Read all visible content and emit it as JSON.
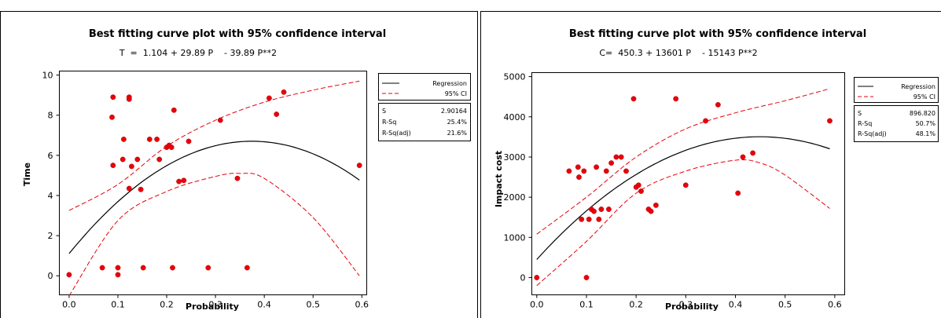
{
  "chart_data": [
    {
      "type": "scatter",
      "title": "Best fitting curve plot with 95% confidence interval",
      "subtitle": "T  =  1.104 + 29.89 P    - 39.89 P**2",
      "xlabel": "Probability",
      "ylabel": "Time",
      "xlim": [
        -0.02,
        0.61
      ],
      "ylim": [
        -0.95,
        10.2
      ],
      "xticks": [
        "0.0",
        "0.1",
        "0.2",
        "0.3",
        "0.4",
        "0.5",
        "0.6"
      ],
      "yticks": [
        "0",
        "2",
        "4",
        "6",
        "8",
        "10"
      ],
      "fit": {
        "intercept": 1.104,
        "linear": 29.89,
        "quadratic": -39.89
      },
      "ci_upper": [
        [
          0,
          3.25
        ],
        [
          0.1,
          4.55
        ],
        [
          0.2,
          6.45
        ],
        [
          0.3,
          7.75
        ],
        [
          0.4,
          8.65
        ],
        [
          0.5,
          9.25
        ],
        [
          0.595,
          9.7
        ]
      ],
      "ci_lower": [
        [
          0,
          -1.0
        ],
        [
          0.1,
          2.75
        ],
        [
          0.2,
          4.2
        ],
        [
          0.3,
          4.95
        ],
        [
          0.35,
          5.1
        ],
        [
          0.4,
          4.85
        ],
        [
          0.5,
          2.9
        ],
        [
          0.595,
          0.0
        ]
      ],
      "points": [
        [
          0.0,
          0.05
        ],
        [
          0.09,
          8.9
        ],
        [
          0.088,
          7.9
        ],
        [
          0.09,
          5.5
        ],
        [
          0.068,
          0.4
        ],
        [
          0.1,
          0.4
        ],
        [
          0.1,
          0.05
        ],
        [
          0.11,
          5.8
        ],
        [
          0.112,
          6.8
        ],
        [
          0.123,
          8.9
        ],
        [
          0.123,
          8.8
        ],
        [
          0.123,
          4.35
        ],
        [
          0.128,
          5.45
        ],
        [
          0.14,
          5.8
        ],
        [
          0.147,
          4.3
        ],
        [
          0.152,
          0.4
        ],
        [
          0.165,
          6.8
        ],
        [
          0.18,
          6.8
        ],
        [
          0.185,
          5.8
        ],
        [
          0.2,
          6.4
        ],
        [
          0.205,
          6.5
        ],
        [
          0.21,
          6.4
        ],
        [
          0.212,
          0.4
        ],
        [
          0.215,
          8.25
        ],
        [
          0.225,
          4.7
        ],
        [
          0.235,
          4.75
        ],
        [
          0.245,
          6.7
        ],
        [
          0.285,
          0.4
        ],
        [
          0.31,
          7.75
        ],
        [
          0.345,
          4.85
        ],
        [
          0.365,
          0.4
        ],
        [
          0.41,
          8.85
        ],
        [
          0.425,
          8.05
        ],
        [
          0.44,
          9.15
        ],
        [
          0.595,
          5.5
        ]
      ],
      "legend": {
        "line1": "Regression",
        "line2": "95% CI"
      },
      "stats": [
        {
          "label": "S",
          "value": "2.90164"
        },
        {
          "label": "R-Sq",
          "value": "25.4%"
        },
        {
          "label": "R-Sq(adj)",
          "value": "21.6%"
        }
      ]
    },
    {
      "type": "scatter",
      "title": "Best fitting curve plot with 95% confidence interval",
      "subtitle": "C=  450.3 + 13601 P    - 15143 P**2",
      "xlabel": "Probability",
      "ylabel": "Impact cost",
      "xlim": [
        -0.01,
        0.62
      ],
      "ylim": [
        -430,
        5100
      ],
      "xticks": [
        "0.0",
        "0.1",
        "0.2",
        "0.3",
        "0.4",
        "0.5",
        "0.6"
      ],
      "yticks": [
        "0",
        "1000",
        "2000",
        "3000",
        "4000",
        "5000"
      ],
      "fit": {
        "intercept": 450.3,
        "linear": 13601,
        "quadratic": -15143
      },
      "ci_upper": [
        [
          0,
          1080
        ],
        [
          0.1,
          2000
        ],
        [
          0.2,
          3000
        ],
        [
          0.3,
          3700
        ],
        [
          0.4,
          4100
        ],
        [
          0.5,
          4400
        ],
        [
          0.59,
          4700
        ]
      ],
      "ci_lower": [
        [
          0,
          -200
        ],
        [
          0.1,
          900
        ],
        [
          0.2,
          2100
        ],
        [
          0.3,
          2650
        ],
        [
          0.4,
          2920
        ],
        [
          0.45,
          2850
        ],
        [
          0.5,
          2550
        ],
        [
          0.59,
          1720
        ]
      ],
      "points": [
        [
          0.0,
          0
        ],
        [
          0.065,
          2650
        ],
        [
          0.083,
          2750
        ],
        [
          0.085,
          2500
        ],
        [
          0.09,
          1450
        ],
        [
          0.095,
          2650
        ],
        [
          0.1,
          0
        ],
        [
          0.105,
          1450
        ],
        [
          0.11,
          1700
        ],
        [
          0.115,
          1650
        ],
        [
          0.12,
          2750
        ],
        [
          0.125,
          1450
        ],
        [
          0.13,
          1700
        ],
        [
          0.14,
          2650
        ],
        [
          0.145,
          1700
        ],
        [
          0.15,
          2850
        ],
        [
          0.16,
          3000
        ],
        [
          0.17,
          3000
        ],
        [
          0.18,
          2650
        ],
        [
          0.195,
          4450
        ],
        [
          0.2,
          2250
        ],
        [
          0.205,
          2300
        ],
        [
          0.21,
          2150
        ],
        [
          0.225,
          1700
        ],
        [
          0.23,
          1650
        ],
        [
          0.24,
          1800
        ],
        [
          0.28,
          4450
        ],
        [
          0.3,
          2300
        ],
        [
          0.34,
          3900
        ],
        [
          0.365,
          4300
        ],
        [
          0.405,
          2100
        ],
        [
          0.415,
          3000
        ],
        [
          0.435,
          3100
        ],
        [
          0.59,
          3900
        ]
      ],
      "legend": {
        "line1": "Regression",
        "line2": "95% CI"
      },
      "stats": [
        {
          "label": "S",
          "value": "896.820"
        },
        {
          "label": "R-Sq",
          "value": "50.7%"
        },
        {
          "label": "R-Sq(adj)",
          "value": "48.1%"
        }
      ]
    }
  ]
}
